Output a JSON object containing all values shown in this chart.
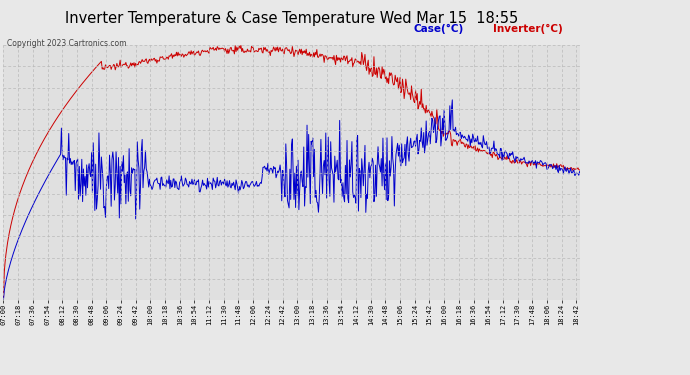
{
  "title": "Inverter Temperature & Case Temperature Wed Mar 15  18:55",
  "copyright": "Copyright 2023 Cartronics.com",
  "legend_case": "Case(°C)",
  "legend_inverter": "Inverter(°C)",
  "yticks": [
    10.8,
    15.9,
    20.9,
    26.0,
    31.1,
    36.2,
    41.2,
    46.3,
    51.4,
    56.5,
    61.5,
    66.6,
    71.7
  ],
  "ymin": 10.8,
  "ymax": 71.7,
  "xstart_min": 420,
  "xend_min": 1126,
  "xtick_interval_min": 18,
  "bg_color": "#e8e8e8",
  "plot_bg_color": "#e0e0e0",
  "grid_color": "#b8b8b8",
  "title_color": "#000000",
  "case_color": "#cc0000",
  "inverter_color": "#0000cc",
  "copyright_color": "#444444"
}
